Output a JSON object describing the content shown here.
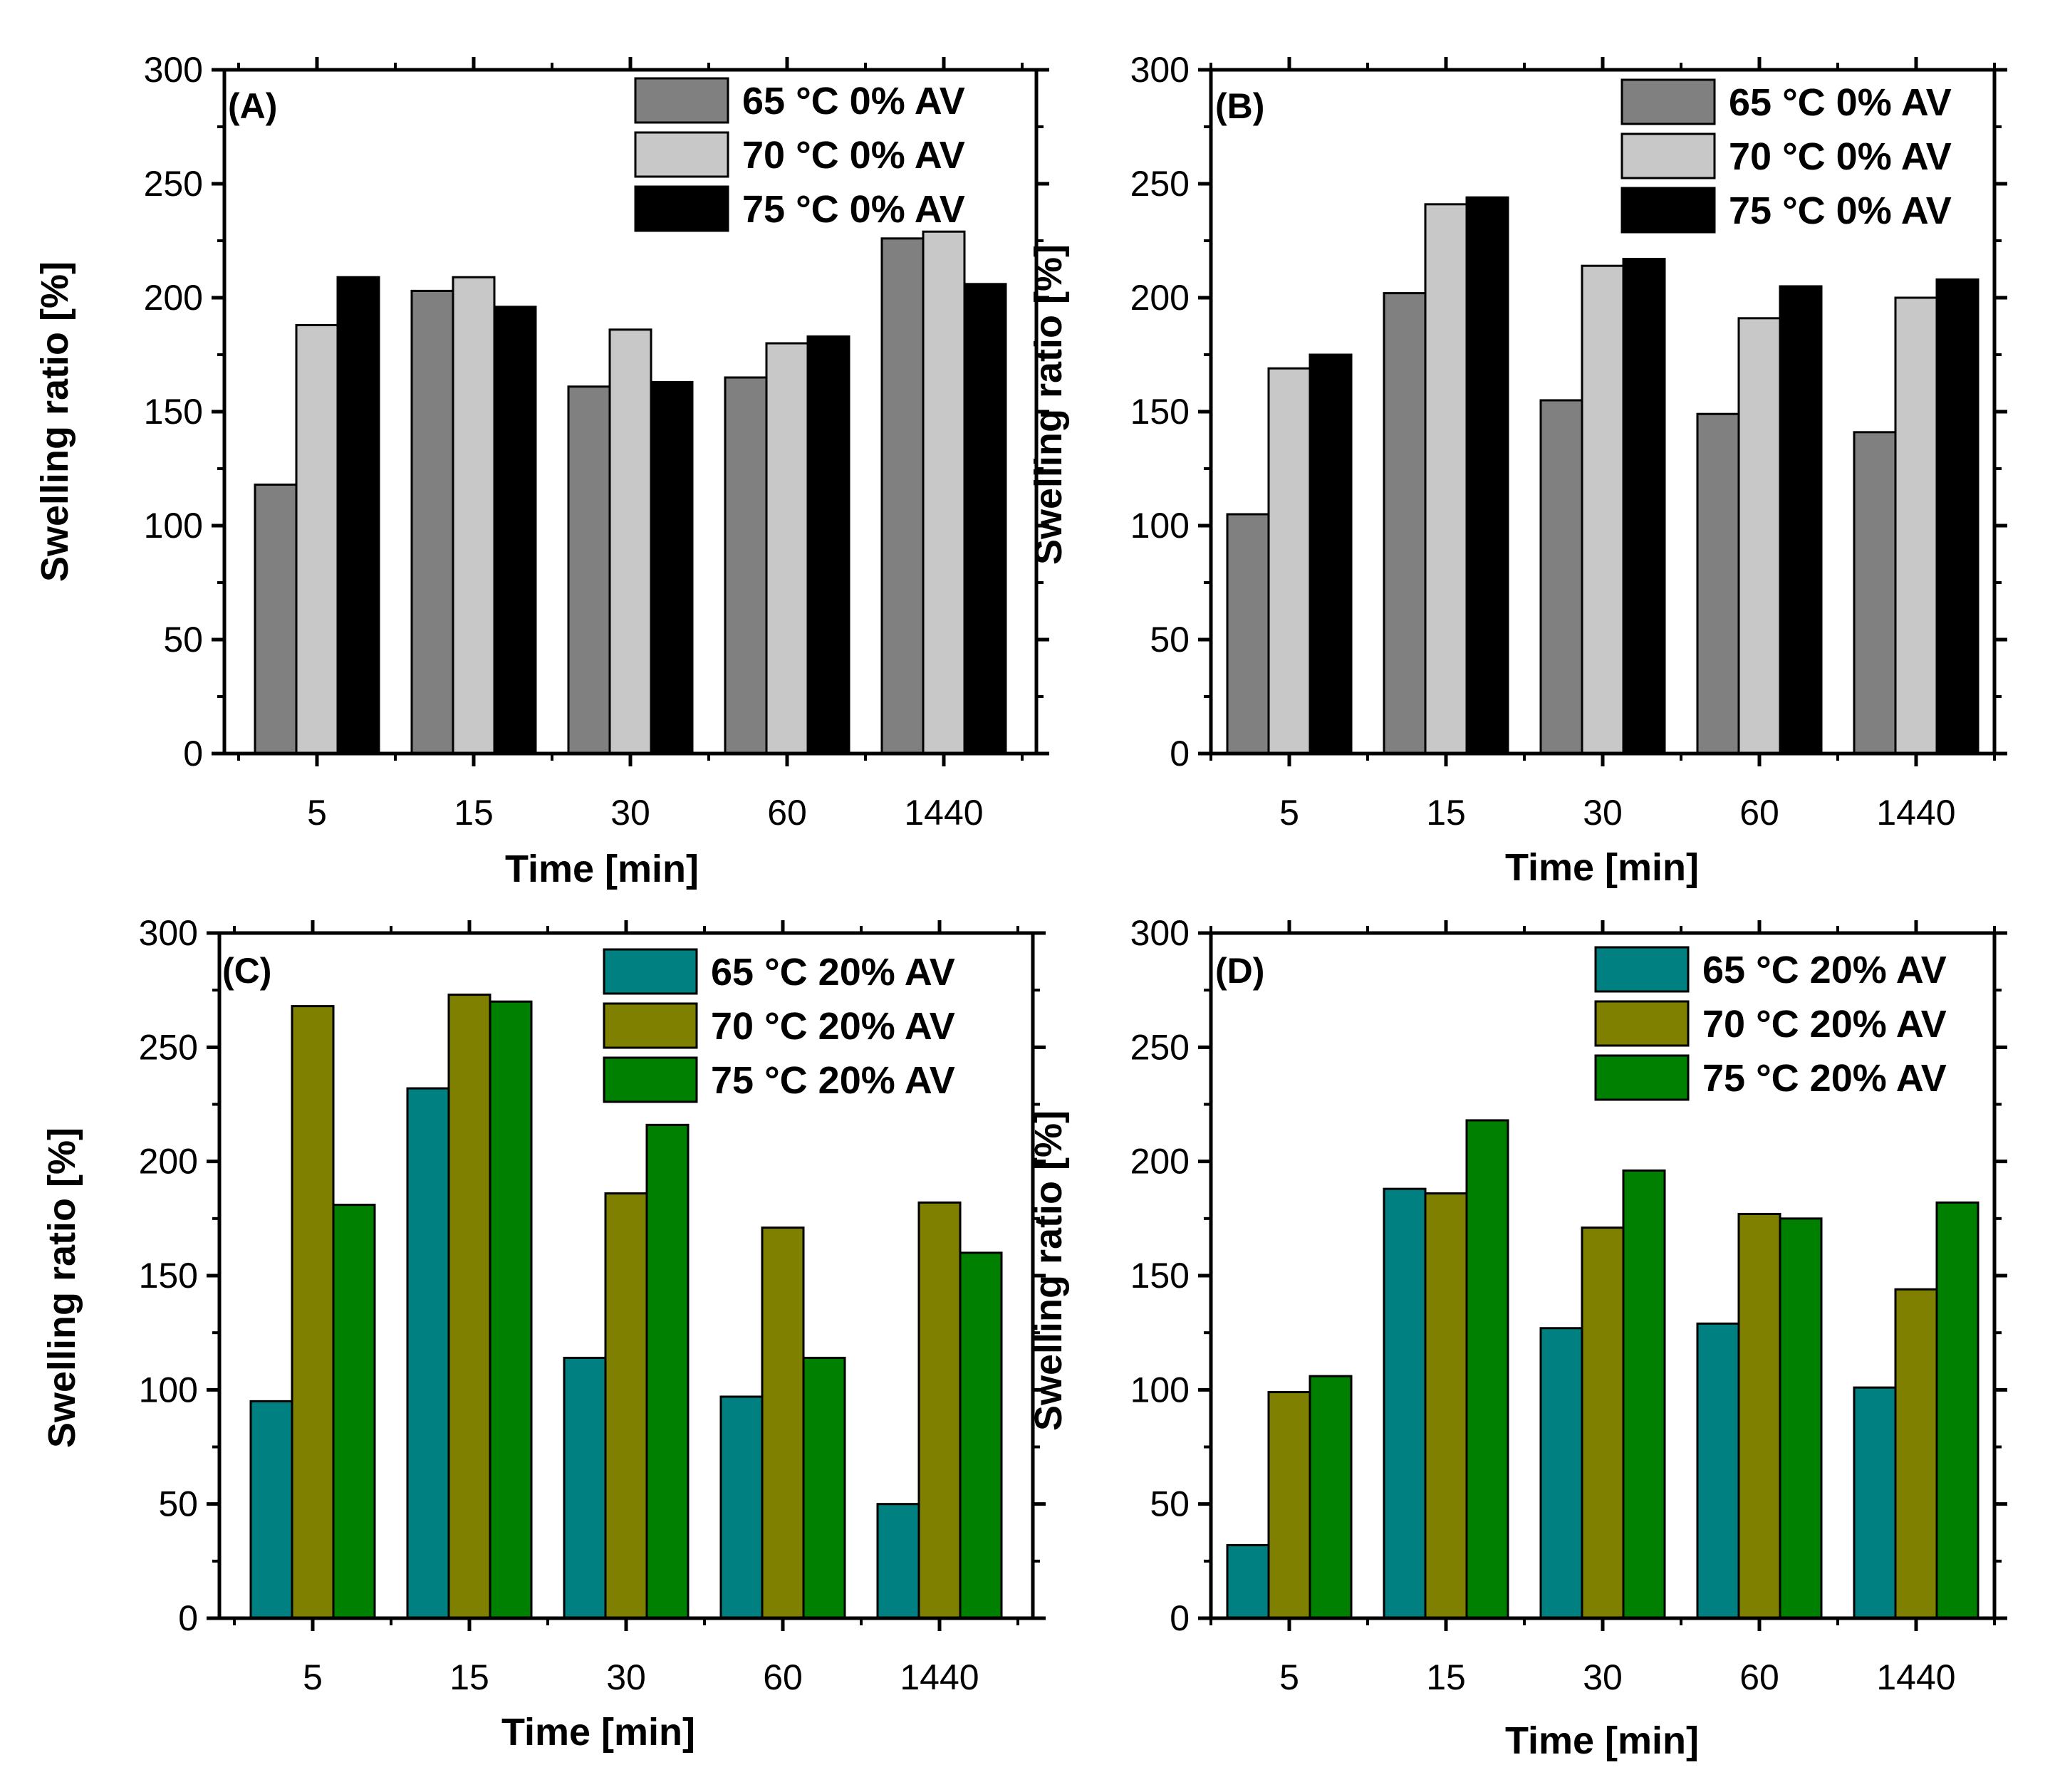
{
  "colors": {
    "gray65": "#808080",
    "gray70": "#c8c8c8",
    "black75": "#000000",
    "teal65": "#008080",
    "olive70": "#808000",
    "green75": "#008000",
    "outline": "#000000"
  },
  "chart_data": [
    {
      "type": "bar",
      "panel_label": "(A)",
      "title": "",
      "xlabel": "Time [min]",
      "ylabel": "Swelling ratio [%]",
      "ylim": [
        0,
        300
      ],
      "yticks": [
        0,
        50,
        100,
        150,
        200,
        250,
        300
      ],
      "legend_position": "top-right",
      "categories": [
        "5",
        "15",
        "30",
        "60",
        "1440"
      ],
      "series": [
        {
          "name": "65 °C 0% AV",
          "color": "#808080",
          "values": [
            118,
            203,
            161,
            165,
            226
          ]
        },
        {
          "name": "70 °C 0% AV",
          "color": "#c8c8c8",
          "values": [
            188,
            209,
            186,
            180,
            229
          ]
        },
        {
          "name": "75 °C 0% AV",
          "color": "#000000",
          "values": [
            209,
            196,
            163,
            183,
            206
          ]
        }
      ]
    },
    {
      "type": "bar",
      "panel_label": "(B)",
      "title": "",
      "xlabel": "Time [min]",
      "ylabel": "Swelling ratio [%]",
      "ylim": [
        0,
        300
      ],
      "yticks": [
        0,
        50,
        100,
        150,
        200,
        250,
        300
      ],
      "legend_position": "top-right",
      "categories": [
        "5",
        "15",
        "30",
        "60",
        "1440"
      ],
      "series": [
        {
          "name": "65 °C 0% AV",
          "color": "#808080",
          "values": [
            105,
            202,
            155,
            149,
            141
          ]
        },
        {
          "name": "70 °C 0% AV",
          "color": "#c8c8c8",
          "values": [
            169,
            241,
            214,
            191,
            200
          ]
        },
        {
          "name": "75 °C 0% AV",
          "color": "#000000",
          "values": [
            175,
            244,
            217,
            205,
            208
          ]
        }
      ]
    },
    {
      "type": "bar",
      "panel_label": "(C)",
      "title": "",
      "xlabel": "Time [min]",
      "ylabel": "Swelling ratio [%]",
      "ylim": [
        0,
        300
      ],
      "yticks": [
        0,
        50,
        100,
        150,
        200,
        250,
        300
      ],
      "legend_position": "top-right",
      "categories": [
        "5",
        "15",
        "30",
        "60",
        "1440"
      ],
      "series": [
        {
          "name": "65 °C 20% AV",
          "color": "#008080",
          "values": [
            95,
            232,
            114,
            97,
            50
          ]
        },
        {
          "name": "70 °C 20% AV",
          "color": "#808000",
          "values": [
            268,
            273,
            186,
            171,
            182
          ]
        },
        {
          "name": "75 °C 20% AV",
          "color": "#008000",
          "values": [
            181,
            270,
            216,
            114,
            160
          ]
        }
      ]
    },
    {
      "type": "bar",
      "panel_label": "(D)",
      "title": "",
      "xlabel": "Time [min]",
      "ylabel": "Swelling ratio [%]",
      "ylim": [
        0,
        300
      ],
      "yticks": [
        0,
        50,
        100,
        150,
        200,
        250,
        300
      ],
      "legend_position": "top-right",
      "categories": [
        "5",
        "15",
        "30",
        "60",
        "1440"
      ],
      "series": [
        {
          "name": "65 °C 20% AV",
          "color": "#008080",
          "values": [
            32,
            188,
            127,
            129,
            101
          ]
        },
        {
          "name": "70 °C 20% AV",
          "color": "#808000",
          "values": [
            99,
            186,
            171,
            177,
            144
          ]
        },
        {
          "name": "75 °C 20% AV",
          "color": "#008000",
          "values": [
            106,
            218,
            196,
            175,
            182
          ]
        }
      ]
    }
  ]
}
